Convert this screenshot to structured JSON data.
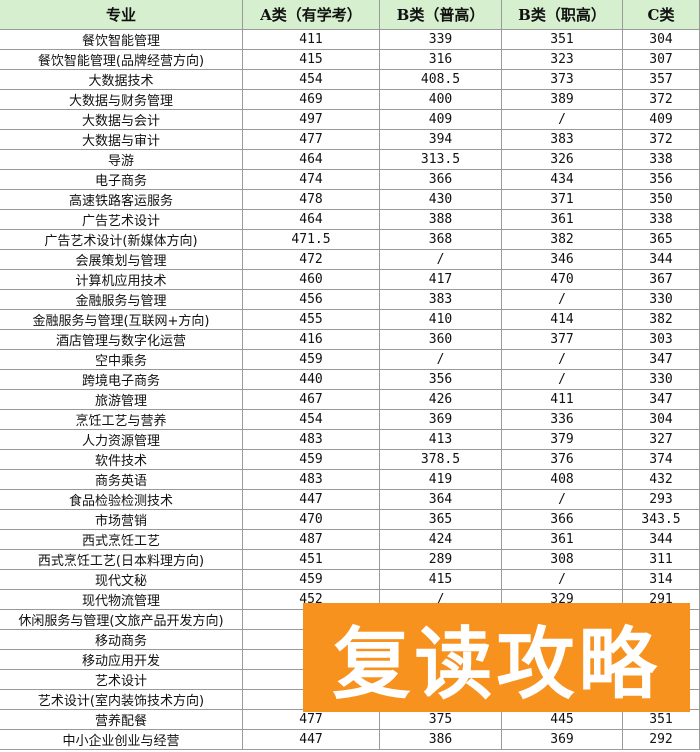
{
  "header": [
    "专业",
    "A类（有学考）",
    "B类（普高）",
    "B类（职高）",
    "C类"
  ],
  "rows": [
    {
      "name": "餐饮智能管理",
      "values": [
        "411",
        "339",
        "351",
        "304"
      ]
    },
    {
      "name": "餐饮智能管理(品牌经营方向)",
      "values": [
        "415",
        "316",
        "323",
        "307"
      ]
    },
    {
      "name": "大数据技术",
      "values": [
        "454",
        "408.5",
        "373",
        "357"
      ]
    },
    {
      "name": "大数据与财务管理",
      "values": [
        "469",
        "400",
        "389",
        "372"
      ]
    },
    {
      "name": "大数据与会计",
      "values": [
        "497",
        "409",
        "/",
        "409"
      ]
    },
    {
      "name": "大数据与审计",
      "values": [
        "477",
        "394",
        "383",
        "372"
      ]
    },
    {
      "name": "导游",
      "values": [
        "464",
        "313.5",
        "326",
        "338"
      ]
    },
    {
      "name": "电子商务",
      "values": [
        "474",
        "366",
        "434",
        "356"
      ]
    },
    {
      "name": "高速铁路客运服务",
      "values": [
        "478",
        "430",
        "371",
        "350"
      ]
    },
    {
      "name": "广告艺术设计",
      "values": [
        "464",
        "388",
        "361",
        "338"
      ]
    },
    {
      "name": "广告艺术设计(新媒体方向)",
      "values": [
        "471.5",
        "368",
        "382",
        "365"
      ]
    },
    {
      "name": "会展策划与管理",
      "values": [
        "472",
        "/",
        "346",
        "344"
      ]
    },
    {
      "name": "计算机应用技术",
      "values": [
        "460",
        "417",
        "470",
        "367"
      ]
    },
    {
      "name": "金融服务与管理",
      "values": [
        "456",
        "383",
        "/",
        "330"
      ]
    },
    {
      "name": "金融服务与管理(互联网+方向)",
      "values": [
        "455",
        "410",
        "414",
        "382"
      ]
    },
    {
      "name": "酒店管理与数字化运营",
      "values": [
        "416",
        "360",
        "377",
        "303"
      ]
    },
    {
      "name": "空中乘务",
      "values": [
        "459",
        "/",
        "/",
        "347"
      ]
    },
    {
      "name": "跨境电子商务",
      "values": [
        "440",
        "356",
        "/",
        "330"
      ]
    },
    {
      "name": "旅游管理",
      "values": [
        "467",
        "426",
        "411",
        "347"
      ]
    },
    {
      "name": "烹饪工艺与营养",
      "values": [
        "454",
        "369",
        "336",
        "304"
      ]
    },
    {
      "name": "人力资源管理",
      "values": [
        "483",
        "413",
        "379",
        "327"
      ]
    },
    {
      "name": "软件技术",
      "values": [
        "459",
        "378.5",
        "376",
        "374"
      ]
    },
    {
      "name": "商务英语",
      "values": [
        "483",
        "419",
        "408",
        "432"
      ]
    },
    {
      "name": "食品检验检测技术",
      "values": [
        "447",
        "364",
        "/",
        "293"
      ]
    },
    {
      "name": "市场营销",
      "values": [
        "470",
        "365",
        "366",
        "343.5"
      ]
    },
    {
      "name": "西式烹饪工艺",
      "values": [
        "487",
        "424",
        "361",
        "344"
      ]
    },
    {
      "name": "西式烹饪工艺(日本料理方向)",
      "values": [
        "451",
        "289",
        "308",
        "311"
      ]
    },
    {
      "name": "现代文秘",
      "values": [
        "459",
        "415",
        "/",
        "314"
      ]
    },
    {
      "name": "现代物流管理",
      "values": [
        "452",
        "/",
        "329",
        "291"
      ]
    },
    {
      "name": "休闲服务与管理(文旅产品开发方向)"
    },
    {
      "name": "移动商务"
    },
    {
      "name": "移动应用开发"
    },
    {
      "name": "艺术设计"
    },
    {
      "name": "艺术设计(室内装饰技术方向)"
    },
    {
      "name": "营养配餐",
      "values": [
        "477",
        "375",
        "445",
        "351"
      ]
    },
    {
      "name": "中小企业创业与经营",
      "values": [
        "447",
        "386",
        "369",
        "292"
      ]
    }
  ],
  "watermark": "复读攻略"
}
